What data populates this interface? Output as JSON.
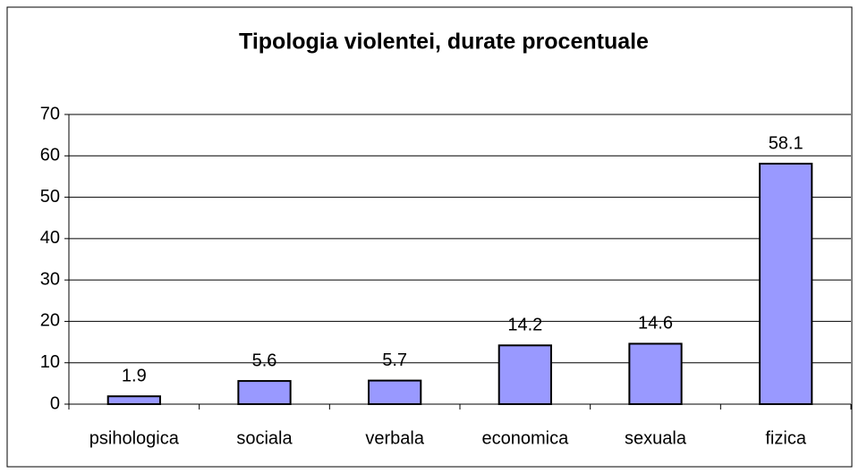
{
  "chart_data": {
    "type": "bar",
    "title": "Tipologia violentei, durate procentuale",
    "categories": [
      "psihologica",
      "sociala",
      "verbala",
      "economica",
      "sexuala",
      "fizica"
    ],
    "values": [
      1.9,
      5.6,
      5.7,
      14.2,
      14.6,
      58.1
    ],
    "color": "#9999ff",
    "ylim": [
      0,
      70
    ],
    "yticks": [
      0,
      10,
      20,
      30,
      40,
      50,
      60,
      70
    ],
    "grid": true
  }
}
